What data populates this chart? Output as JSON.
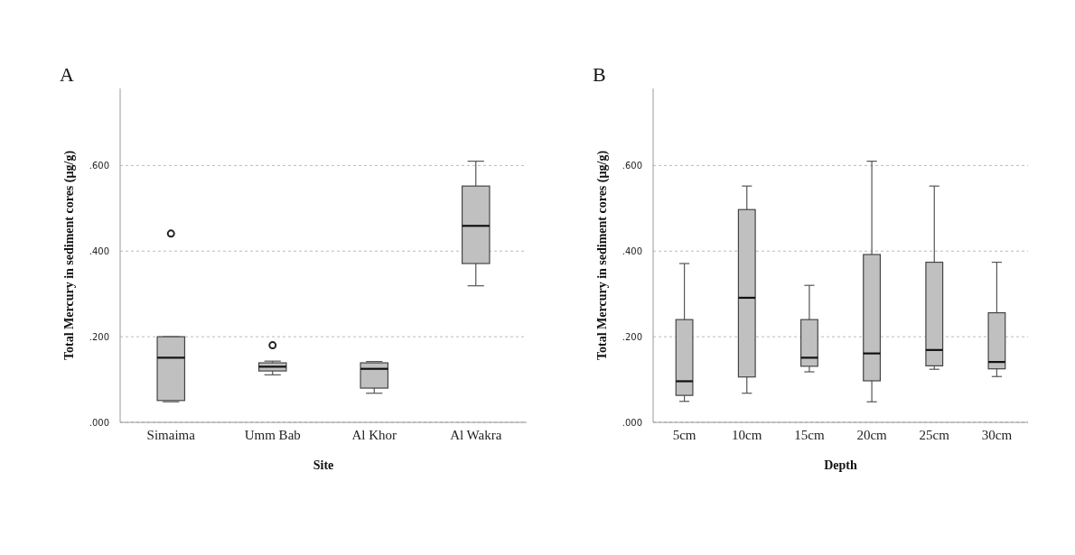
{
  "chart_data": [
    {
      "type": "box",
      "title": "A",
      "xlabel": "Site",
      "ylabel": "Total Mercury in sediment cores (µg/g)",
      "categories": [
        "Simaima",
        "Umm Bab",
        "Al Khor",
        "Al Wakra"
      ],
      "color": "#c0c0c0",
      "ylim": [
        0,
        0.78
      ],
      "yticks": [
        {
          "value": 0,
          "label": ".000"
        },
        {
          "value": 0.2,
          "label": ".200"
        },
        {
          "value": 0.4,
          "label": ".400"
        },
        {
          "value": 0.6,
          "label": ".600"
        }
      ],
      "grid": "y",
      "boxes": [
        {
          "low": 0.048,
          "q1": 0.051,
          "median": 0.151,
          "q3": 0.2,
          "high": 0.2,
          "outliers": [
            0.441
          ]
        },
        {
          "low": 0.111,
          "q1": 0.12,
          "median": 0.13,
          "q3": 0.139,
          "high": 0.143,
          "outliers": [
            0.18
          ]
        },
        {
          "low": 0.068,
          "q1": 0.08,
          "median": 0.125,
          "q3": 0.139,
          "high": 0.142
        },
        {
          "low": 0.319,
          "q1": 0.371,
          "median": 0.459,
          "q3": 0.552,
          "high": 0.61
        }
      ]
    },
    {
      "type": "box",
      "title": "B",
      "xlabel": "Depth",
      "ylabel": "Total Mercury in sediment cores (µg/g)",
      "categories": [
        "5cm",
        "10cm",
        "15cm",
        "20cm",
        "25cm",
        "30cm"
      ],
      "color": "#c0c0c0",
      "ylim": [
        0,
        0.78
      ],
      "yticks": [
        {
          "value": 0,
          "label": ".000"
        },
        {
          "value": 0.2,
          "label": ".200"
        },
        {
          "value": 0.4,
          "label": ".400"
        },
        {
          "value": 0.6,
          "label": ".600"
        }
      ],
      "grid": "y",
      "boxes": [
        {
          "low": 0.049,
          "q1": 0.063,
          "median": 0.096,
          "q3": 0.24,
          "high": 0.371
        },
        {
          "low": 0.068,
          "q1": 0.106,
          "median": 0.291,
          "q3": 0.497,
          "high": 0.552
        },
        {
          "low": 0.118,
          "q1": 0.131,
          "median": 0.151,
          "q3": 0.24,
          "high": 0.32
        },
        {
          "low": 0.048,
          "q1": 0.097,
          "median": 0.161,
          "q3": 0.392,
          "high": 0.61
        },
        {
          "low": 0.124,
          "q1": 0.132,
          "median": 0.169,
          "q3": 0.374,
          "high": 0.552
        },
        {
          "low": 0.107,
          "q1": 0.125,
          "median": 0.141,
          "q3": 0.256,
          "high": 0.374
        }
      ]
    }
  ]
}
